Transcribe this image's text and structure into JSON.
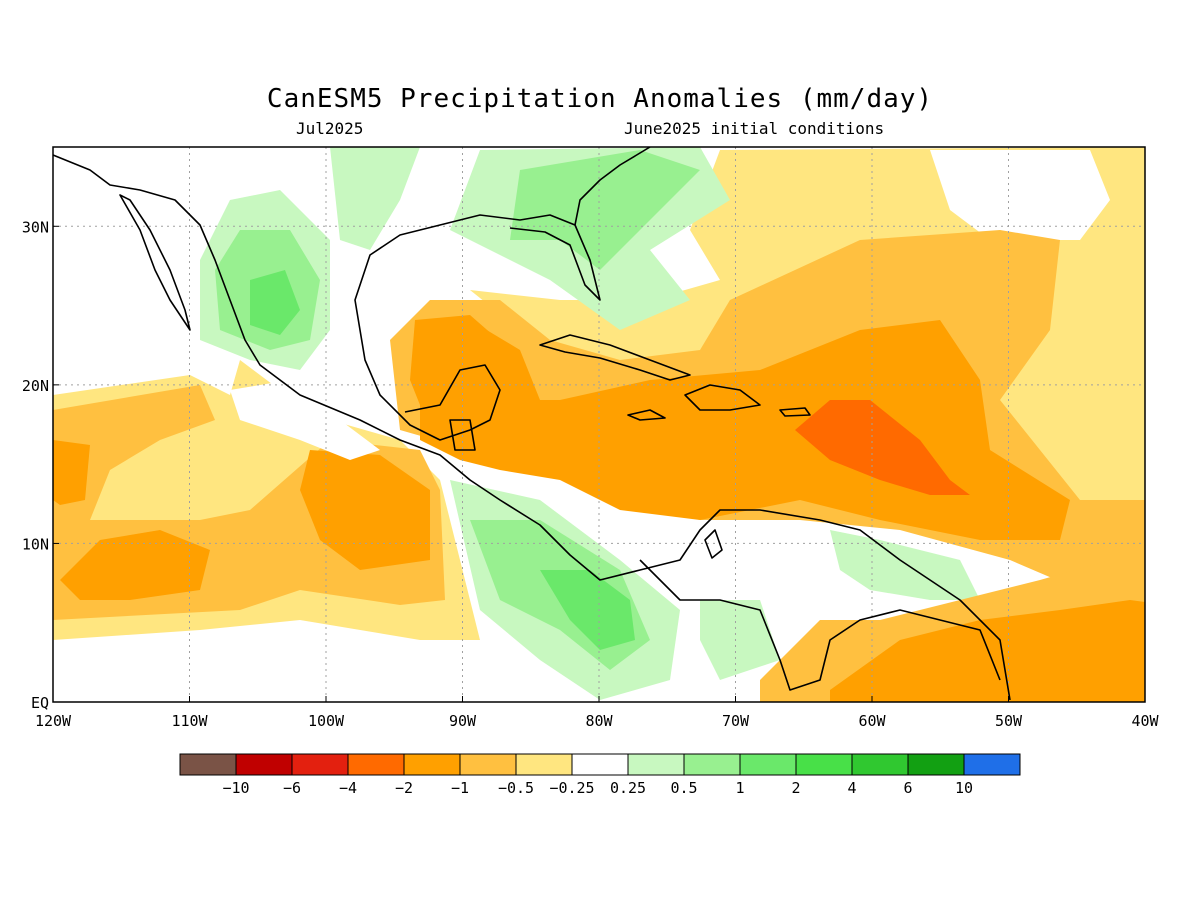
{
  "title": "CanESM5 Precipitation Anomalies (mm/day)",
  "valid_month": "Jul2025",
  "initial_conditions": "June2025 initial conditions",
  "map": {
    "lon_range": [
      -120,
      -40
    ],
    "lat_range": [
      0,
      35
    ],
    "lon_ticks": [
      "120W",
      "110W",
      "100W",
      "90W",
      "80W",
      "70W",
      "60W",
      "50W",
      "40W"
    ],
    "lat_ticks": [
      "EQ",
      "10N",
      "20N",
      "30N"
    ],
    "grid": "dotted",
    "ocean_background": "#ffffff",
    "coastline_color": "#000000"
  },
  "colorbar": {
    "colors": [
      "#7a5346",
      "#c00000",
      "#e3200f",
      "#ff6a00",
      "#ffa000",
      "#ffc040",
      "#ffe680",
      "#ffffff",
      "#c8f8c0",
      "#98f090",
      "#6ae86a",
      "#48e048",
      "#30c830",
      "#12a012",
      "#1f6fe8"
    ],
    "labels": [
      "−10",
      "−6",
      "−4",
      "−2",
      "−1",
      "−0.5",
      "−0.25",
      "0.25",
      "0.5",
      "1",
      "2",
      "4",
      "6",
      "10"
    ]
  }
}
